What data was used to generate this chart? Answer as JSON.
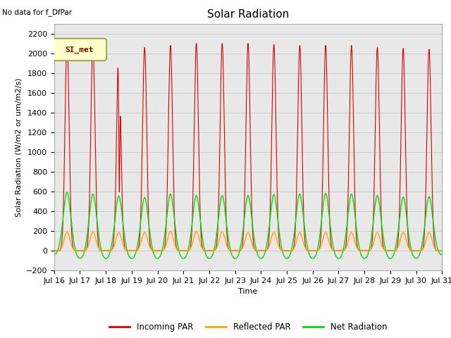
{
  "title": "Solar Radiation",
  "xlabel": "Time",
  "ylabel": "Solar Radiation (W/m2 or um/m2/s)",
  "top_left_text": "No data for f_DfPar",
  "legend_box_text": "SI_met",
  "ylim": [
    -200,
    2300
  ],
  "yticks": [
    -200,
    0,
    200,
    400,
    600,
    800,
    1000,
    1200,
    1400,
    1600,
    1800,
    2000,
    2200
  ],
  "xtick_labels": [
    "Jul 16",
    "Jul 17",
    "Jul 18",
    "Jul 19",
    "Jul 20",
    "Jul 21",
    "Jul 22",
    "Jul 23",
    "Jul 24",
    "Jul 25",
    "Jul 26",
    "Jul 27",
    "Jul 28",
    "Jul 29",
    "Jul 30",
    "Jul 31"
  ],
  "n_days": 15,
  "background_color": "#e8e8e8",
  "incoming_color": "#dd0000",
  "reflected_color": "#ffa500",
  "net_color": "#00dd00",
  "legend_entries": [
    "Incoming PAR",
    "Reflected PAR",
    "Net Radiation"
  ],
  "legend_colors": [
    "#dd0000",
    "#ffa500",
    "#00dd00"
  ],
  "incoming_peaks": [
    2100,
    2100,
    2060,
    2060,
    2080,
    2100,
    2100,
    2100,
    2090,
    2080,
    2080,
    2080,
    2060,
    2050,
    2040
  ],
  "reflected_peaks": [
    190,
    190,
    185,
    185,
    195,
    195,
    190,
    185,
    185,
    185,
    185,
    185,
    185,
    185,
    185
  ],
  "net_peaks": [
    600,
    590,
    570,
    555,
    590,
    575,
    575,
    575,
    585,
    590,
    595,
    590,
    575,
    560,
    555
  ],
  "day18_dip": true,
  "title_fontsize": 11,
  "axis_label_fontsize": 8,
  "tick_fontsize": 8
}
